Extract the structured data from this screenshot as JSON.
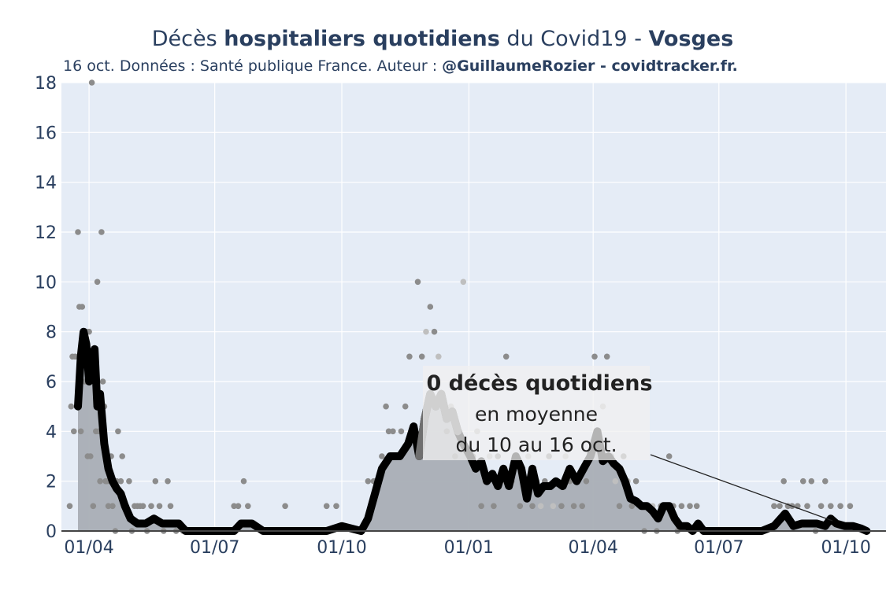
{
  "colors": {
    "plot_bg": "#e5ecf6",
    "grid": "#ffffff",
    "title": "#2a3f5f",
    "area_fill": "#a9aeb5",
    "points": "#8c8c8c",
    "points_light": "#bfbfbf",
    "line": "#000000",
    "line_recent": "#6f6f6f",
    "annotation_bg": "#f0f0f0"
  },
  "header": {
    "title_part1": "Décès ",
    "title_part2": "hospitaliers quotidiens",
    "title_part3": " du Covid19 - ",
    "title_part4": "Vosges",
    "subtitle_part1": "16 oct. Données : Santé publique France. Auteur : ",
    "subtitle_part2": "@GuillaumeRozier - covidtracker.fr."
  },
  "annotation": {
    "line1": "0 décès quotidiens",
    "line2": "en moyenne",
    "line3": "du 10 au 16 oct."
  },
  "chart_data": {
    "type": "line",
    "title": "Décès hospitaliers quotidiens du Covid19 - Vosges",
    "subtitle": "16 oct. Données : Santé publique France. Auteur : @GuillaumeRozier - covidtracker.fr.",
    "xlabel": "",
    "ylabel": "",
    "x_range": [
      "2020-03-12",
      "2021-10-30"
    ],
    "ylim": [
      0,
      18
    ],
    "y_ticks": [
      0,
      2,
      4,
      6,
      8,
      10,
      12,
      14,
      16,
      18
    ],
    "x_ticks": [
      {
        "date": "2020-04-01",
        "label": "01/04"
      },
      {
        "date": "2020-07-01",
        "label": "01/07"
      },
      {
        "date": "2020-10-01",
        "label": "01/10"
      },
      {
        "date": "2021-01-01",
        "label": "01/01"
      },
      {
        "date": "2021-04-01",
        "label": "01/04"
      },
      {
        "date": "2021-07-01",
        "label": "01/07"
      },
      {
        "date": "2021-10-01",
        "label": "01/10"
      }
    ],
    "grid": true,
    "series": [
      {
        "kind": "line_area",
        "points": [
          [
            "2020-03-24",
            5
          ],
          [
            "2020-03-26",
            7
          ],
          [
            "2020-03-28",
            8
          ],
          [
            "2020-03-30",
            7.5
          ],
          [
            "2020-04-01",
            6
          ],
          [
            "2020-04-03",
            7
          ],
          [
            "2020-04-05",
            7.3
          ],
          [
            "2020-04-07",
            5
          ],
          [
            "2020-04-09",
            5.5
          ],
          [
            "2020-04-12",
            3.5
          ],
          [
            "2020-04-15",
            2.5
          ],
          [
            "2020-04-18",
            2
          ],
          [
            "2020-04-21",
            1.7
          ],
          [
            "2020-04-24",
            1.5
          ],
          [
            "2020-04-27",
            1
          ],
          [
            "2020-05-01",
            0.5
          ],
          [
            "2020-05-06",
            0.3
          ],
          [
            "2020-05-12",
            0.3
          ],
          [
            "2020-05-18",
            0.5
          ],
          [
            "2020-05-24",
            0.3
          ],
          [
            "2020-05-30",
            0.3
          ],
          [
            "2020-06-05",
            0.3
          ],
          [
            "2020-06-10",
            0
          ],
          [
            "2020-07-15",
            0
          ],
          [
            "2020-07-20",
            0.3
          ],
          [
            "2020-07-28",
            0.3
          ],
          [
            "2020-08-05",
            0
          ],
          [
            "2020-09-20",
            0
          ],
          [
            "2020-10-01",
            0.2
          ],
          [
            "2020-10-15",
            0
          ],
          [
            "2020-10-20",
            0.5
          ],
          [
            "2020-10-25",
            1.5
          ],
          [
            "2020-10-30",
            2.5
          ],
          [
            "2020-11-05",
            3
          ],
          [
            "2020-11-12",
            3
          ],
          [
            "2020-11-18",
            3.5
          ],
          [
            "2020-11-22",
            4.2
          ],
          [
            "2020-11-26",
            3
          ],
          [
            "2020-11-30",
            4.5
          ],
          [
            "2020-12-04",
            5.5
          ],
          [
            "2020-12-08",
            5
          ],
          [
            "2020-12-12",
            5.5
          ],
          [
            "2020-12-16",
            4.5
          ],
          [
            "2020-12-20",
            4.8
          ],
          [
            "2020-12-24",
            4
          ],
          [
            "2020-12-28",
            3.5
          ],
          [
            "2021-01-02",
            3
          ],
          [
            "2021-01-06",
            2.5
          ],
          [
            "2021-01-10",
            2.8
          ],
          [
            "2021-01-14",
            2
          ],
          [
            "2021-01-18",
            2.3
          ],
          [
            "2021-01-22",
            1.8
          ],
          [
            "2021-01-26",
            2.5
          ],
          [
            "2021-01-30",
            1.8
          ],
          [
            "2021-02-04",
            3
          ],
          [
            "2021-02-08",
            2.5
          ],
          [
            "2021-02-12",
            1.3
          ],
          [
            "2021-02-16",
            2.5
          ],
          [
            "2021-02-20",
            1.5
          ],
          [
            "2021-02-24",
            1.8
          ],
          [
            "2021-03-01",
            1.8
          ],
          [
            "2021-03-05",
            2
          ],
          [
            "2021-03-10",
            1.8
          ],
          [
            "2021-03-15",
            2.5
          ],
          [
            "2021-03-20",
            2
          ],
          [
            "2021-03-25",
            2.5
          ],
          [
            "2021-03-30",
            3
          ],
          [
            "2021-04-04",
            4
          ],
          [
            "2021-04-08",
            2.8
          ],
          [
            "2021-04-12",
            3
          ],
          [
            "2021-04-16",
            2.7
          ],
          [
            "2021-04-20",
            2.5
          ],
          [
            "2021-04-24",
            2
          ],
          [
            "2021-04-28",
            1.3
          ],
          [
            "2021-05-02",
            1.2
          ],
          [
            "2021-05-06",
            1
          ],
          [
            "2021-05-10",
            1
          ],
          [
            "2021-05-14",
            0.8
          ],
          [
            "2021-05-18",
            0.5
          ],
          [
            "2021-05-22",
            1
          ],
          [
            "2021-05-26",
            1
          ],
          [
            "2021-05-30",
            0.5
          ],
          [
            "2021-06-03",
            0.2
          ],
          [
            "2021-06-08",
            0.2
          ],
          [
            "2021-06-12",
            0
          ],
          [
            "2021-06-16",
            0.3
          ],
          [
            "2021-06-20",
            0
          ],
          [
            "2021-08-01",
            0
          ],
          [
            "2021-08-10",
            0.2
          ],
          [
            "2021-08-18",
            0.7
          ],
          [
            "2021-08-24",
            0.2
          ],
          [
            "2021-08-30",
            0.3
          ],
          [
            "2021-09-05",
            0.3
          ],
          [
            "2021-09-10",
            0.3
          ],
          [
            "2021-09-16",
            0.2
          ],
          [
            "2021-09-20",
            0.5
          ],
          [
            "2021-09-24",
            0.3
          ],
          [
            "2021-09-30",
            0.2
          ],
          [
            "2021-10-06",
            0.2
          ],
          [
            "2021-10-12",
            0.1
          ],
          [
            "2021-10-16",
            0
          ]
        ]
      },
      {
        "kind": "scatter",
        "points": [
          [
            "2020-03-18",
            1
          ],
          [
            "2020-03-19",
            5
          ],
          [
            "2020-03-20",
            7
          ],
          [
            "2020-03-21",
            4
          ],
          [
            "2020-03-22",
            7
          ],
          [
            "2020-03-23",
            5
          ],
          [
            "2020-03-24",
            12
          ],
          [
            "2020-03-25",
            9
          ],
          [
            "2020-03-26",
            4
          ],
          [
            "2020-03-27",
            9
          ],
          [
            "2020-03-28",
            8
          ],
          [
            "2020-03-29",
            6
          ],
          [
            "2020-03-30",
            8
          ],
          [
            "2020-03-31",
            3
          ],
          [
            "2020-04-01",
            8
          ],
          [
            "2020-04-02",
            3
          ],
          [
            "2020-04-03",
            18
          ],
          [
            "2020-04-04",
            1
          ],
          [
            "2020-04-05",
            6
          ],
          [
            "2020-04-06",
            4
          ],
          [
            "2020-04-07",
            10
          ],
          [
            "2020-04-08",
            4
          ],
          [
            "2020-04-09",
            2
          ],
          [
            "2020-04-10",
            12
          ],
          [
            "2020-04-11",
            6
          ],
          [
            "2020-04-12",
            5
          ],
          [
            "2020-04-13",
            2
          ],
          [
            "2020-04-14",
            2
          ],
          [
            "2020-04-15",
            1
          ],
          [
            "2020-04-16",
            2
          ],
          [
            "2020-04-17",
            3
          ],
          [
            "2020-04-18",
            1
          ],
          [
            "2020-04-19",
            2
          ],
          [
            "2020-04-20",
            0
          ],
          [
            "2020-04-21",
            2
          ],
          [
            "2020-04-22",
            4
          ],
          [
            "2020-04-24",
            2
          ],
          [
            "2020-04-25",
            3
          ],
          [
            "2020-04-27",
            1
          ],
          [
            "2020-04-28",
            1
          ],
          [
            "2020-04-30",
            2
          ],
          [
            "2020-05-02",
            0
          ],
          [
            "2020-05-04",
            1
          ],
          [
            "2020-05-06",
            1
          ],
          [
            "2020-05-08",
            1
          ],
          [
            "2020-05-10",
            1
          ],
          [
            "2020-05-13",
            0
          ],
          [
            "2020-05-16",
            1
          ],
          [
            "2020-05-19",
            2
          ],
          [
            "2020-05-22",
            1
          ],
          [
            "2020-05-25",
            0
          ],
          [
            "2020-05-28",
            2
          ],
          [
            "2020-05-30",
            1
          ],
          [
            "2020-06-03",
            0
          ],
          [
            "2020-06-08",
            0
          ],
          [
            "2020-07-15",
            1
          ],
          [
            "2020-07-18",
            1
          ],
          [
            "2020-07-22",
            2
          ],
          [
            "2020-07-25",
            1
          ],
          [
            "2020-08-21",
            1
          ],
          [
            "2020-09-20",
            1
          ],
          [
            "2020-09-27",
            1
          ],
          [
            "2020-10-20",
            2
          ],
          [
            "2020-10-24",
            2
          ],
          [
            "2020-10-27",
            2
          ],
          [
            "2020-10-30",
            3
          ],
          [
            "2020-11-02",
            5
          ],
          [
            "2020-11-04",
            4
          ],
          [
            "2020-11-07",
            4
          ],
          [
            "2020-11-10",
            3
          ],
          [
            "2020-11-13",
            4
          ],
          [
            "2020-11-16",
            5
          ],
          [
            "2020-11-19",
            7
          ],
          [
            "2020-11-22",
            4
          ],
          [
            "2020-11-25",
            10
          ],
          [
            "2020-11-28",
            7
          ],
          [
            "2020-12-01",
            8
          ],
          [
            "2020-12-04",
            9
          ],
          [
            "2020-12-07",
            8
          ],
          [
            "2020-12-10",
            7
          ],
          [
            "2020-12-13",
            5
          ],
          [
            "2020-12-16",
            4
          ],
          [
            "2020-12-19",
            5
          ],
          [
            "2020-12-22",
            3
          ],
          [
            "2020-12-25",
            4
          ],
          [
            "2020-12-28",
            10
          ],
          [
            "2021-01-01",
            6
          ],
          [
            "2021-01-04",
            3
          ],
          [
            "2021-01-07",
            4
          ],
          [
            "2021-01-10",
            1
          ],
          [
            "2021-01-13",
            2
          ],
          [
            "2021-01-16",
            3
          ],
          [
            "2021-01-19",
            1
          ],
          [
            "2021-01-22",
            3
          ],
          [
            "2021-01-25",
            2
          ],
          [
            "2021-01-28",
            7
          ],
          [
            "2021-02-01",
            2
          ],
          [
            "2021-02-04",
            3
          ],
          [
            "2021-02-07",
            1
          ],
          [
            "2021-02-10",
            2
          ],
          [
            "2021-02-13",
            3
          ],
          [
            "2021-02-16",
            1
          ],
          [
            "2021-02-19",
            2
          ],
          [
            "2021-02-22",
            1
          ],
          [
            "2021-02-25",
            2
          ],
          [
            "2021-02-28",
            3
          ],
          [
            "2021-03-03",
            1
          ],
          [
            "2021-03-06",
            2
          ],
          [
            "2021-03-09",
            1
          ],
          [
            "2021-03-12",
            3
          ],
          [
            "2021-03-15",
            2
          ],
          [
            "2021-03-18",
            1
          ],
          [
            "2021-03-21",
            2
          ],
          [
            "2021-03-24",
            1
          ],
          [
            "2021-03-27",
            2
          ],
          [
            "2021-03-30",
            3
          ],
          [
            "2021-04-02",
            7
          ],
          [
            "2021-04-05",
            6
          ],
          [
            "2021-04-08",
            5
          ],
          [
            "2021-04-11",
            7
          ],
          [
            "2021-04-14",
            3
          ],
          [
            "2021-04-17",
            2
          ],
          [
            "2021-04-20",
            1
          ],
          [
            "2021-04-23",
            3
          ],
          [
            "2021-04-26",
            2
          ],
          [
            "2021-04-29",
            1
          ],
          [
            "2021-05-02",
            2
          ],
          [
            "2021-05-05",
            1
          ],
          [
            "2021-05-08",
            0
          ],
          [
            "2021-05-11",
            1
          ],
          [
            "2021-05-14",
            1
          ],
          [
            "2021-05-17",
            0
          ],
          [
            "2021-05-20",
            1
          ],
          [
            "2021-05-23",
            1
          ],
          [
            "2021-05-26",
            3
          ],
          [
            "2021-05-29",
            1
          ],
          [
            "2021-06-01",
            0
          ],
          [
            "2021-06-04",
            1
          ],
          [
            "2021-06-10",
            1
          ],
          [
            "2021-06-15",
            1
          ],
          [
            "2021-06-20",
            0
          ],
          [
            "2021-08-10",
            1
          ],
          [
            "2021-08-14",
            1
          ],
          [
            "2021-08-17",
            2
          ],
          [
            "2021-08-20",
            1
          ],
          [
            "2021-08-23",
            1
          ],
          [
            "2021-08-27",
            1
          ],
          [
            "2021-08-31",
            2
          ],
          [
            "2021-09-03",
            1
          ],
          [
            "2021-09-06",
            2
          ],
          [
            "2021-09-09",
            0
          ],
          [
            "2021-09-13",
            1
          ],
          [
            "2021-09-16",
            2
          ],
          [
            "2021-09-20",
            1
          ],
          [
            "2021-09-27",
            1
          ],
          [
            "2021-10-04",
            1
          ]
        ]
      }
    ]
  }
}
